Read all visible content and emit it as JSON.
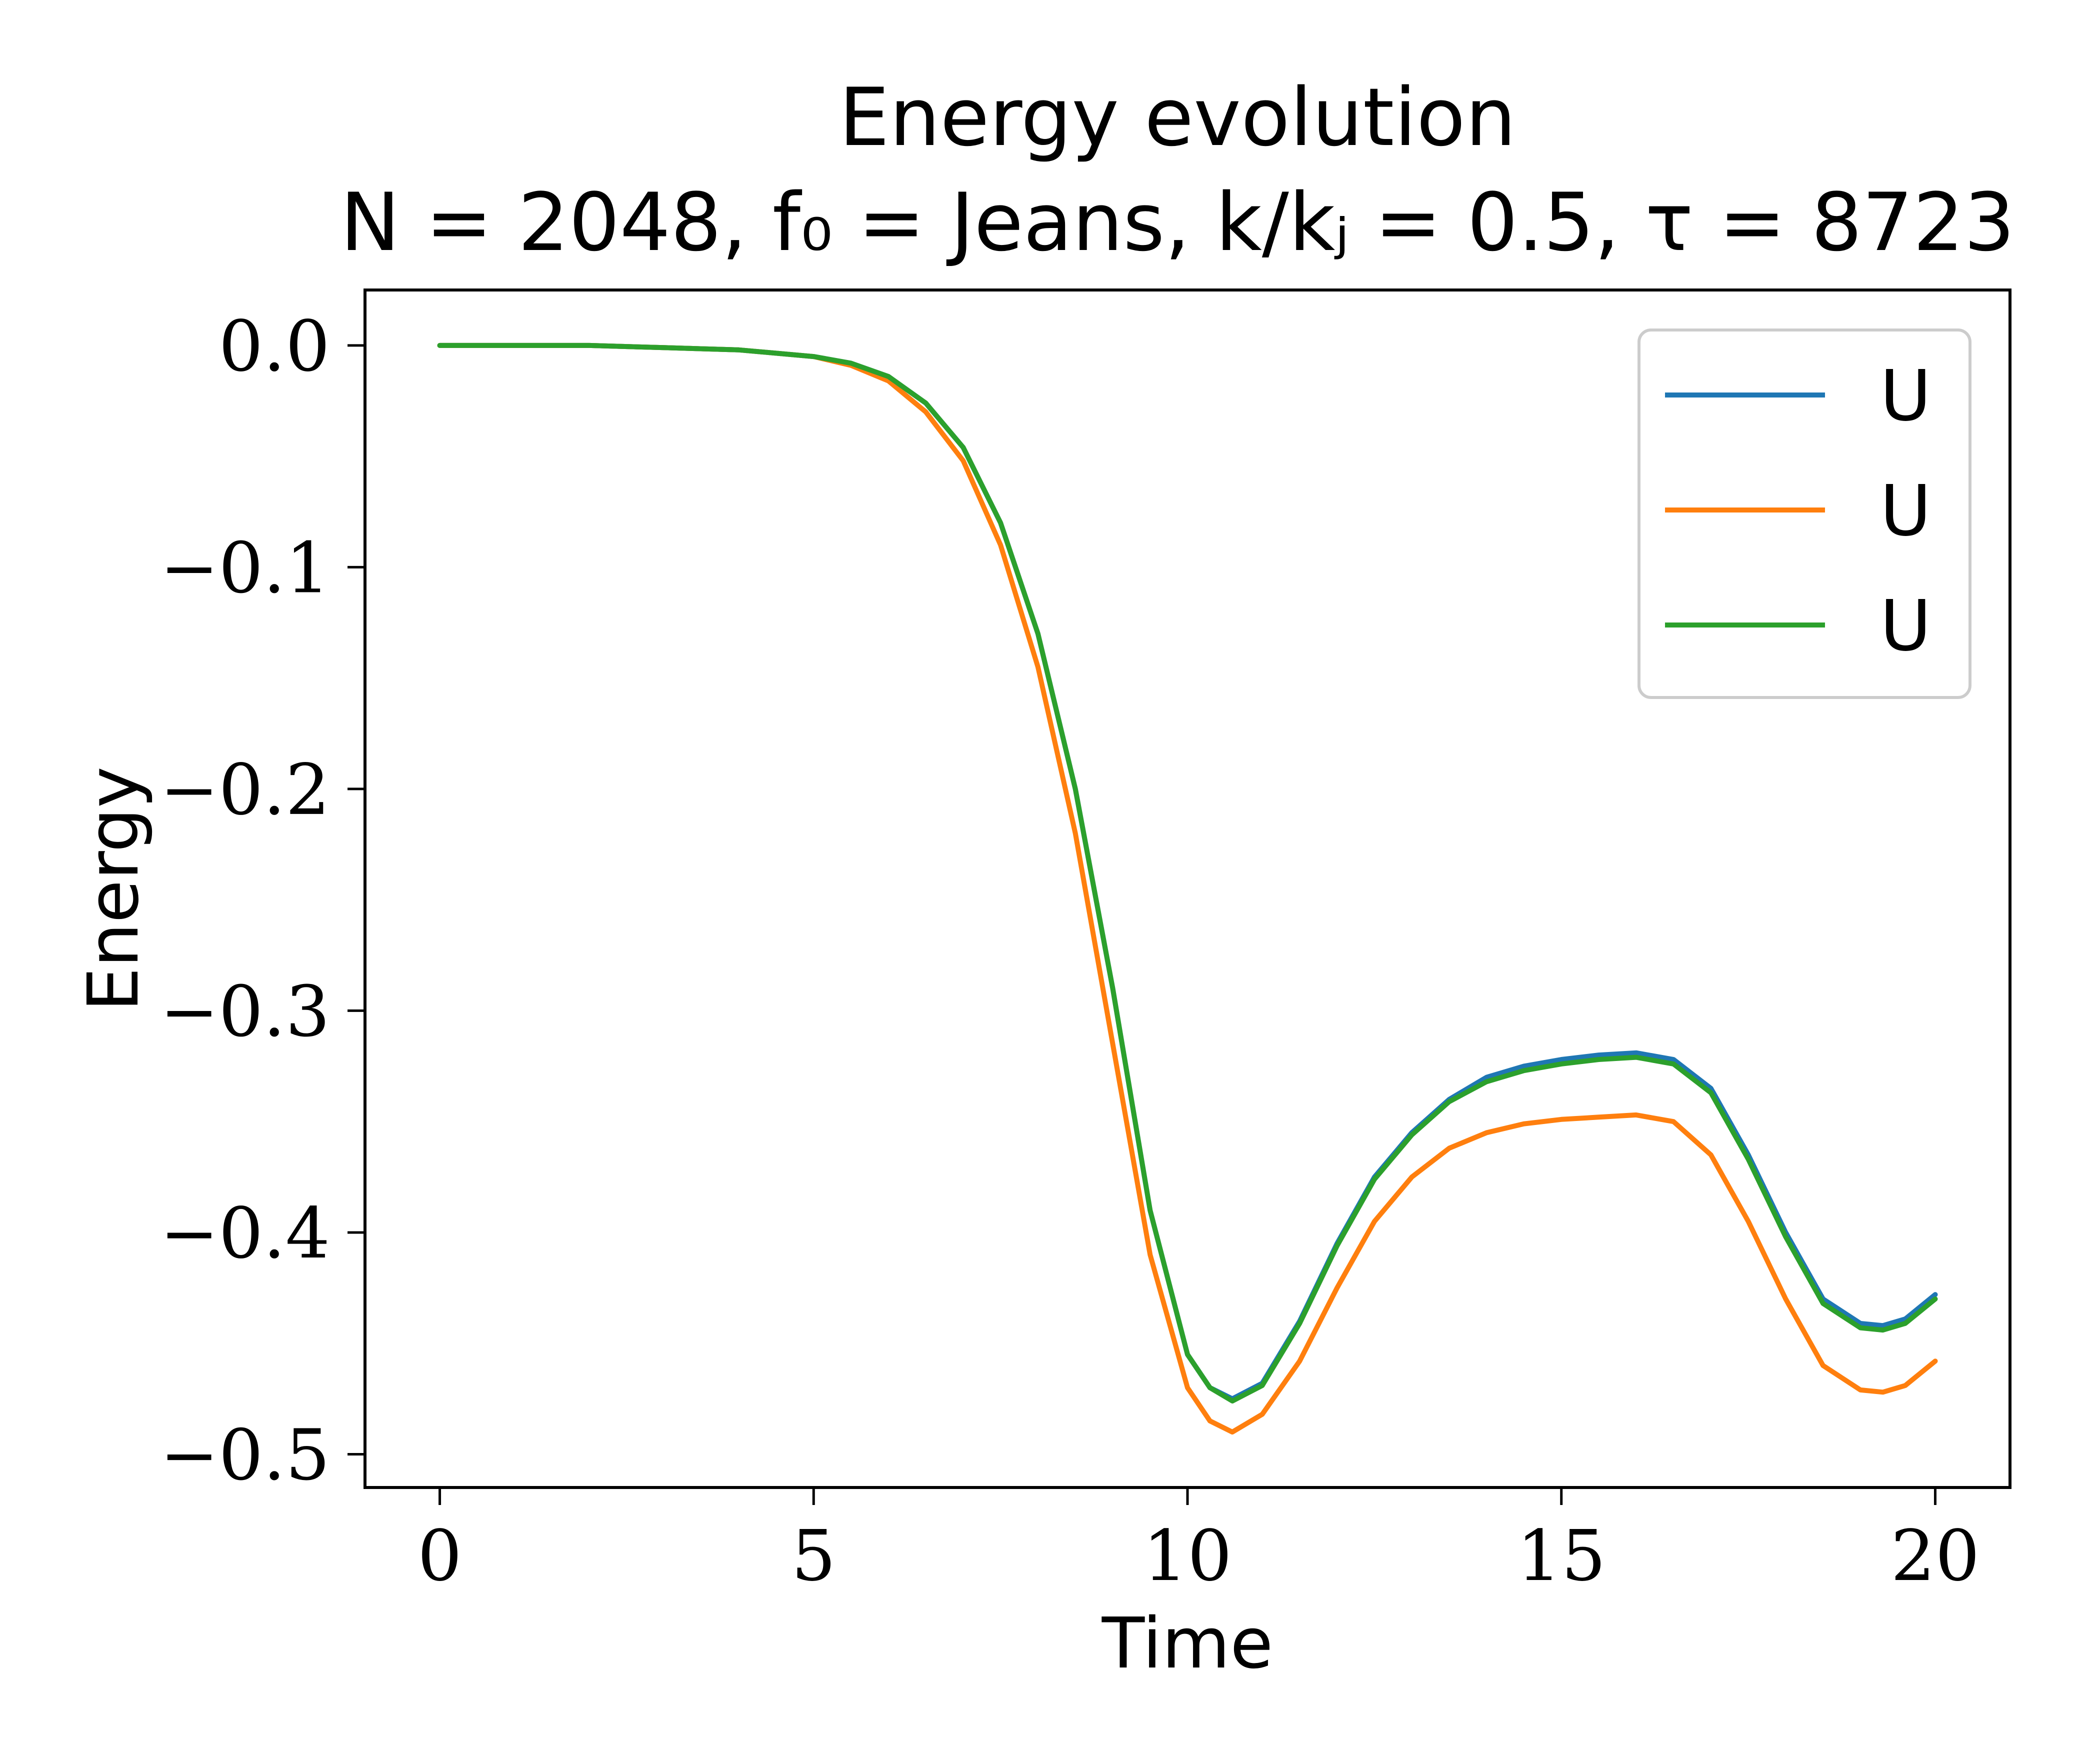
{
  "chart_data": {
    "type": "line",
    "title": "Energy evolution",
    "subtitle": "N = 2048, f₀ = Jeans, k/kⱼ = 0.5, τ = 8723",
    "xlabel": "Time",
    "ylabel": "Energy",
    "xlim": [
      -1,
      21
    ],
    "ylim": [
      -0.515,
      0.025
    ],
    "xticks": [
      {
        "value": 0,
        "label": "0"
      },
      {
        "value": 5,
        "label": "5"
      },
      {
        "value": 10,
        "label": "10"
      },
      {
        "value": 15,
        "label": "15"
      },
      {
        "value": 20,
        "label": "20"
      }
    ],
    "yticks": [
      {
        "value": 0.0,
        "label": "0.0"
      },
      {
        "value": -0.1,
        "label": "−0.1"
      },
      {
        "value": -0.2,
        "label": "−0.2"
      },
      {
        "value": -0.3,
        "label": "−0.3"
      },
      {
        "value": -0.4,
        "label": "−0.4"
      },
      {
        "value": -0.5,
        "label": "−0.5"
      }
    ],
    "grid": false,
    "legend_position": "top-right",
    "series": [
      {
        "name": "U",
        "color": "#1f77b4",
        "points": [
          [
            0,
            0
          ],
          [
            1,
            0
          ],
          [
            2,
            0
          ],
          [
            3,
            -0.001
          ],
          [
            4,
            -0.002
          ],
          [
            5,
            -0.005
          ],
          [
            5.5,
            -0.008
          ],
          [
            6,
            -0.014
          ],
          [
            6.5,
            -0.026
          ],
          [
            7,
            -0.046
          ],
          [
            7.5,
            -0.08
          ],
          [
            8,
            -0.13
          ],
          [
            8.5,
            -0.2
          ],
          [
            9,
            -0.29
          ],
          [
            9.5,
            -0.39
          ],
          [
            10,
            -0.455
          ],
          [
            10.3,
            -0.47
          ],
          [
            10.6,
            -0.475
          ],
          [
            11,
            -0.468
          ],
          [
            11.5,
            -0.44
          ],
          [
            12,
            -0.405
          ],
          [
            12.5,
            -0.375
          ],
          [
            13,
            -0.355
          ],
          [
            13.5,
            -0.34
          ],
          [
            14,
            -0.33
          ],
          [
            14.5,
            -0.325
          ],
          [
            15,
            -0.322
          ],
          [
            15.5,
            -0.32
          ],
          [
            16,
            -0.319
          ],
          [
            16.5,
            -0.322
          ],
          [
            17,
            -0.335
          ],
          [
            17.5,
            -0.365
          ],
          [
            18,
            -0.4
          ],
          [
            18.5,
            -0.43
          ],
          [
            19,
            -0.441
          ],
          [
            19.3,
            -0.442
          ],
          [
            19.6,
            -0.439
          ],
          [
            20,
            -0.428
          ]
        ]
      },
      {
        "name": "U",
        "color": "#ff7f0e",
        "points": [
          [
            0,
            0
          ],
          [
            1,
            0
          ],
          [
            2,
            0
          ],
          [
            3,
            -0.001
          ],
          [
            4,
            -0.002
          ],
          [
            5,
            -0.005
          ],
          [
            5.5,
            -0.009
          ],
          [
            6,
            -0.016
          ],
          [
            6.5,
            -0.03
          ],
          [
            7,
            -0.052
          ],
          [
            7.5,
            -0.09
          ],
          [
            8,
            -0.145
          ],
          [
            8.5,
            -0.22
          ],
          [
            9,
            -0.315
          ],
          [
            9.5,
            -0.41
          ],
          [
            10,
            -0.47
          ],
          [
            10.3,
            -0.485
          ],
          [
            10.6,
            -0.49
          ],
          [
            11,
            -0.482
          ],
          [
            11.5,
            -0.458
          ],
          [
            12,
            -0.425
          ],
          [
            12.5,
            -0.395
          ],
          [
            13,
            -0.375
          ],
          [
            13.5,
            -0.362
          ],
          [
            14,
            -0.355
          ],
          [
            14.5,
            -0.351
          ],
          [
            15,
            -0.349
          ],
          [
            15.5,
            -0.348
          ],
          [
            16,
            -0.347
          ],
          [
            16.5,
            -0.35
          ],
          [
            17,
            -0.365
          ],
          [
            17.5,
            -0.395
          ],
          [
            18,
            -0.43
          ],
          [
            18.5,
            -0.46
          ],
          [
            19,
            -0.471
          ],
          [
            19.3,
            -0.472
          ],
          [
            19.6,
            -0.469
          ],
          [
            20,
            -0.458
          ]
        ]
      },
      {
        "name": "U",
        "color": "#2ca02c",
        "points": [
          [
            0,
            0
          ],
          [
            1,
            0
          ],
          [
            2,
            0
          ],
          [
            3,
            -0.001
          ],
          [
            4,
            -0.002
          ],
          [
            5,
            -0.005
          ],
          [
            5.5,
            -0.008
          ],
          [
            6,
            -0.014
          ],
          [
            6.5,
            -0.026
          ],
          [
            7,
            -0.046
          ],
          [
            7.5,
            -0.08
          ],
          [
            8,
            -0.13
          ],
          [
            8.5,
            -0.2
          ],
          [
            9,
            -0.29
          ],
          [
            9.5,
            -0.39
          ],
          [
            10,
            -0.455
          ],
          [
            10.3,
            -0.47
          ],
          [
            10.6,
            -0.476
          ],
          [
            11,
            -0.469
          ],
          [
            11.5,
            -0.441
          ],
          [
            12,
            -0.406
          ],
          [
            12.5,
            -0.376
          ],
          [
            13,
            -0.356
          ],
          [
            13.5,
            -0.341
          ],
          [
            14,
            -0.332
          ],
          [
            14.5,
            -0.327
          ],
          [
            15,
            -0.324
          ],
          [
            15.5,
            -0.322
          ],
          [
            16,
            -0.321
          ],
          [
            16.5,
            -0.324
          ],
          [
            17,
            -0.337
          ],
          [
            17.5,
            -0.367
          ],
          [
            18,
            -0.402
          ],
          [
            18.5,
            -0.432
          ],
          [
            19,
            -0.443
          ],
          [
            19.3,
            -0.444
          ],
          [
            19.6,
            -0.441
          ],
          [
            20,
            -0.43
          ]
        ]
      }
    ]
  }
}
